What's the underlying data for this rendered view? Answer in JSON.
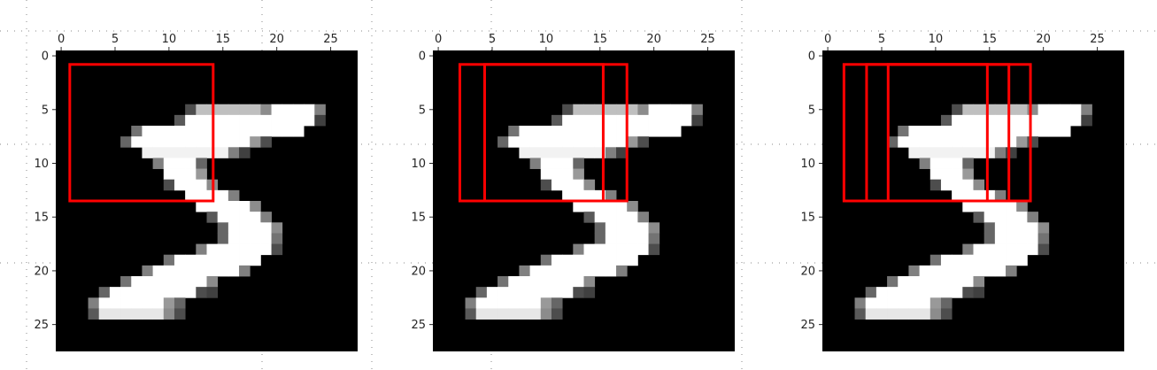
{
  "chart_data": [
    {
      "type": "heatmap",
      "colormap": "gray",
      "image_size": [
        28,
        28
      ],
      "xlim": [
        -0.5,
        27.5
      ],
      "ylim": [
        27.5,
        -0.5
      ],
      "x_ticks": [
        0,
        5,
        10,
        15,
        20,
        25
      ],
      "y_ticks": [
        0,
        5,
        10,
        15,
        20,
        25
      ],
      "x_tick_labels": [
        "0",
        "5",
        "10",
        "15",
        "20",
        "25"
      ],
      "y_tick_labels": [
        "0",
        "5",
        "10",
        "15",
        "20",
        "25"
      ],
      "x_axis_position": "top",
      "overlay_color": "#ff0000",
      "overlay_rects": [
        {
          "x0": 0.8,
          "y0": 0.8,
          "x1": 14.1,
          "y1": 13.5
        }
      ]
    },
    {
      "type": "heatmap",
      "colormap": "gray",
      "image_size": [
        28,
        28
      ],
      "xlim": [
        -0.5,
        27.5
      ],
      "ylim": [
        27.5,
        -0.5
      ],
      "x_ticks": [
        0,
        5,
        10,
        15,
        20,
        25
      ],
      "y_ticks": [
        0,
        5,
        10,
        15,
        20,
        25
      ],
      "x_tick_labels": [
        "0",
        "5",
        "10",
        "15",
        "20",
        "25"
      ],
      "y_tick_labels": [
        "0",
        "5",
        "10",
        "15",
        "20",
        "25"
      ],
      "x_axis_position": "top",
      "overlay_color": "#ff0000",
      "overlay_rects": [
        {
          "x0": 2.0,
          "y0": 0.8,
          "x1": 15.3,
          "y1": 13.5
        },
        {
          "x0": 4.3,
          "y0": 0.8,
          "x1": 17.5,
          "y1": 13.5
        }
      ]
    },
    {
      "type": "heatmap",
      "colormap": "gray",
      "image_size": [
        28,
        28
      ],
      "xlim": [
        -0.5,
        27.5
      ],
      "ylim": [
        27.5,
        -0.5
      ],
      "x_ticks": [
        0,
        5,
        10,
        15,
        20,
        25
      ],
      "y_ticks": [
        0,
        5,
        10,
        15,
        20,
        25
      ],
      "x_tick_labels": [
        "0",
        "5",
        "10",
        "15",
        "20",
        "25"
      ],
      "y_tick_labels": [
        "0",
        "5",
        "10",
        "15",
        "20",
        "25"
      ],
      "x_axis_position": "top",
      "overlay_color": "#ff0000",
      "overlay_rects": [
        {
          "x0": 1.5,
          "y0": 0.8,
          "x1": 14.8,
          "y1": 13.5
        },
        {
          "x0": 3.6,
          "y0": 0.8,
          "x1": 16.8,
          "y1": 13.5
        },
        {
          "x0": 5.6,
          "y0": 0.8,
          "x1": 18.8,
          "y1": 13.5
        }
      ]
    }
  ]
}
